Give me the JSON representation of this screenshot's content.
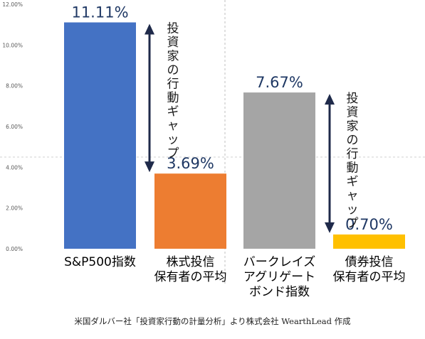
{
  "chart_data": {
    "type": "bar",
    "categories": [
      "S&P500指数",
      "株式投信\n保有者の平均",
      "バークレイズ\nアグリゲート\nボンド指数",
      "債券投信\n保有者の平均"
    ],
    "values": [
      11.11,
      3.69,
      7.67,
      0.7
    ],
    "value_labels": [
      "11.11%",
      "3.69%",
      "7.67%",
      "0.70%"
    ],
    "bar_colors": [
      "#4472c4",
      "#ed7d31",
      "#a5a5a5",
      "#ffc000"
    ],
    "ylim": [
      0,
      12
    ],
    "yticks": [
      0,
      2,
      4,
      6,
      8,
      10,
      12
    ],
    "ytick_labels": [
      "0.00%",
      "2.00%",
      "4.00%",
      "6.00%",
      "8.00%",
      "10.00%",
      "12.00%"
    ],
    "grid": false,
    "annotations": [
      {
        "text": "投資家の行動ギャップ",
        "from_bar": 0,
        "to_bar": 1
      },
      {
        "text": "投資家の行動ギャップ",
        "from_bar": 2,
        "to_bar": 3
      }
    ],
    "arrow_color": "#1f2a4a",
    "label_color": "#1f3864"
  },
  "caption": "米国ダルバー社「投資家行動の計量分析」より株式会社 WearthLead 作成"
}
